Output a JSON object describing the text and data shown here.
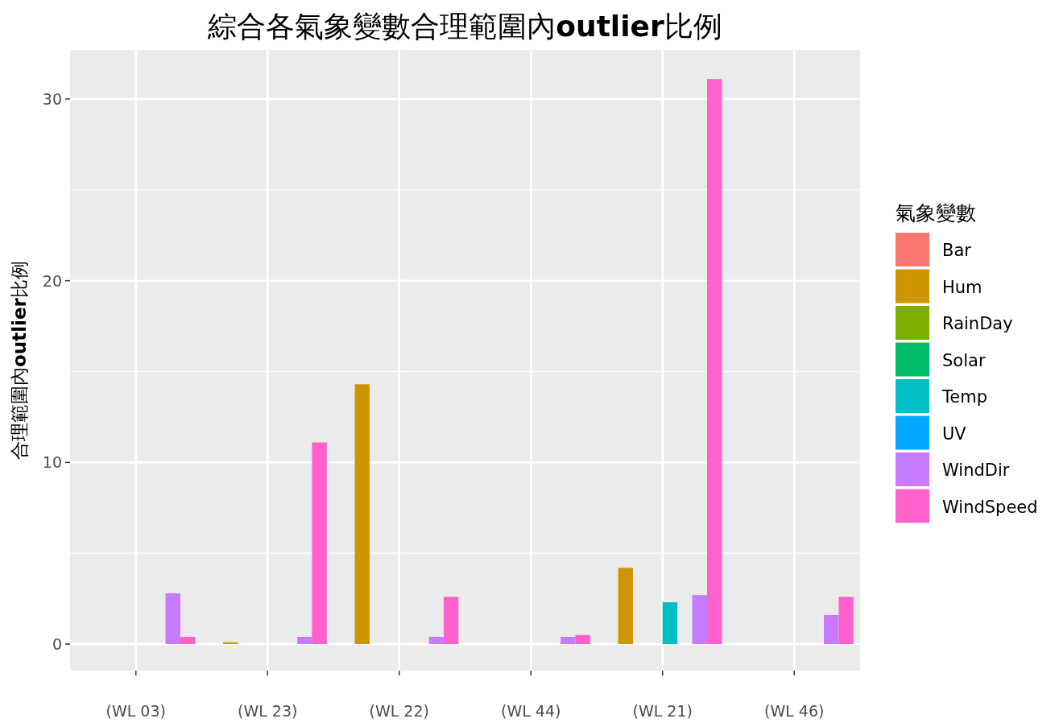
{
  "chart_data": {
    "type": "bar",
    "title": "綜合各氣象變數合理範圍內**outlier**比例",
    "ylabel": "合理範圍內**outlier**比例",
    "legend_title": "氣象變數",
    "categories": [
      "(WL 03)",
      "(WL 23)",
      "(WL 22)",
      "(WL 44)",
      "(WL 21)",
      "(WL 46)"
    ],
    "series": [
      {
        "name": "Bar",
        "color": "#f8766d",
        "values": [
          0,
          0,
          null,
          null,
          null,
          0
        ]
      },
      {
        "name": "Hum",
        "color": "#cd9600",
        "values": [
          null,
          0.1,
          14.3,
          null,
          4.2,
          null
        ]
      },
      {
        "name": "RainDay",
        "color": "#7cae00",
        "values": [
          0,
          null,
          null,
          0,
          0,
          null
        ]
      },
      {
        "name": "Solar",
        "color": "#00be67",
        "values": [
          null,
          null,
          0,
          null,
          0,
          0
        ]
      },
      {
        "name": "Temp",
        "color": "#00bfc4",
        "values": [
          0,
          null,
          null,
          null,
          2.3,
          null
        ]
      },
      {
        "name": "UV",
        "color": "#00a9ff",
        "values": [
          null,
          null,
          0,
          null,
          null,
          0
        ]
      },
      {
        "name": "WindDir",
        "color": "#c77cff",
        "values": [
          2.8,
          0.4,
          0.4,
          0.4,
          2.7,
          1.6
        ]
      },
      {
        "name": "WindSpeed",
        "color": "#ff61cc",
        "values": [
          0.4,
          11.1,
          2.6,
          0.5,
          31.1,
          2.6
        ]
      }
    ],
    "ylim": [
      -1.46,
      32.7
    ],
    "yticks": [
      0,
      10,
      20,
      30
    ],
    "grid": true,
    "legend": "right"
  }
}
